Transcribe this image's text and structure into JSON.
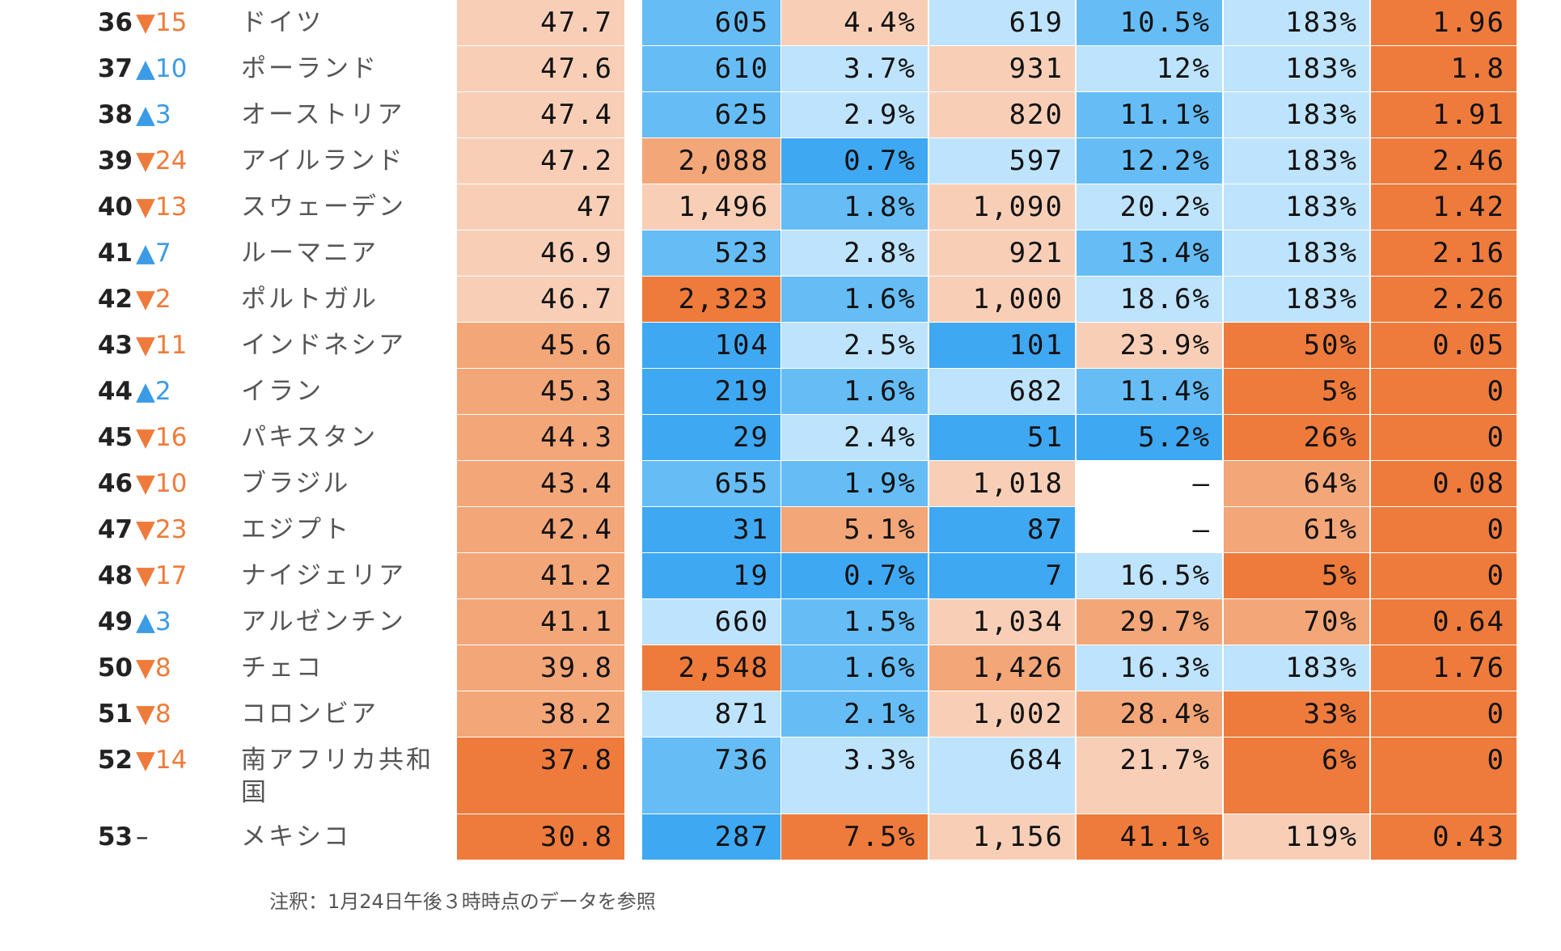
{
  "chart_data": {
    "type": "table",
    "rows": [
      {
        "rank": "36",
        "change": "▼15",
        "dir": "down",
        "country": "ドイツ",
        "values": [
          "47.7",
          "605",
          "4.4%",
          "619",
          "10.5%",
          "183%",
          "1.96"
        ]
      },
      {
        "rank": "37",
        "change": "▲10",
        "dir": "up",
        "country": "ポーランド",
        "values": [
          "47.6",
          "610",
          "3.7%",
          "931",
          "12%",
          "183%",
          "1.8"
        ]
      },
      {
        "rank": "38",
        "change": "▲3",
        "dir": "up",
        "country": "オーストリア",
        "values": [
          "47.4",
          "625",
          "2.9%",
          "820",
          "11.1%",
          "183%",
          "1.91"
        ]
      },
      {
        "rank": "39",
        "change": "▼24",
        "dir": "down",
        "country": "アイルランド",
        "values": [
          "47.2",
          "2,088",
          "0.7%",
          "597",
          "12.2%",
          "183%",
          "2.46"
        ]
      },
      {
        "rank": "40",
        "change": "▼13",
        "dir": "down",
        "country": "スウェーデン",
        "values": [
          "47",
          "1,496",
          "1.8%",
          "1,090",
          "20.2%",
          "183%",
          "1.42"
        ]
      },
      {
        "rank": "41",
        "change": "▲7",
        "dir": "up",
        "country": "ルーマニア",
        "values": [
          "46.9",
          "523",
          "2.8%",
          "921",
          "13.4%",
          "183%",
          "2.16"
        ]
      },
      {
        "rank": "42",
        "change": "▼2",
        "dir": "down",
        "country": "ポルトガル",
        "values": [
          "46.7",
          "2,323",
          "1.6%",
          "1,000",
          "18.6%",
          "183%",
          "2.26"
        ]
      },
      {
        "rank": "43",
        "change": "▼11",
        "dir": "down",
        "country": "インドネシア",
        "values": [
          "45.6",
          "104",
          "2.5%",
          "101",
          "23.9%",
          "50%",
          "0.05"
        ]
      },
      {
        "rank": "44",
        "change": "▲2",
        "dir": "up",
        "country": "イラン",
        "values": [
          "45.3",
          "219",
          "1.6%",
          "682",
          "11.4%",
          "5%",
          "0"
        ]
      },
      {
        "rank": "45",
        "change": "▼16",
        "dir": "down",
        "country": "パキスタン",
        "values": [
          "44.3",
          "29",
          "2.4%",
          "51",
          "5.2%",
          "26%",
          "0"
        ]
      },
      {
        "rank": "46",
        "change": "▼10",
        "dir": "down",
        "country": "ブラジル",
        "values": [
          "43.4",
          "655",
          "1.9%",
          "1,018",
          "–",
          "64%",
          "0.08"
        ]
      },
      {
        "rank": "47",
        "change": "▼23",
        "dir": "down",
        "country": "エジプト",
        "values": [
          "42.4",
          "31",
          "5.1%",
          "87",
          "–",
          "61%",
          "0"
        ]
      },
      {
        "rank": "48",
        "change": "▼17",
        "dir": "down",
        "country": "ナイジェリア",
        "values": [
          "41.2",
          "19",
          "0.7%",
          "7",
          "16.5%",
          "5%",
          "0"
        ]
      },
      {
        "rank": "49",
        "change": "▲3",
        "dir": "up",
        "country": "アルゼンチン",
        "values": [
          "41.1",
          "660",
          "1.5%",
          "1,034",
          "29.7%",
          "70%",
          "0.64"
        ]
      },
      {
        "rank": "50",
        "change": "▼8",
        "dir": "down",
        "country": "チェコ",
        "values": [
          "39.8",
          "2,548",
          "1.6%",
          "1,426",
          "16.3%",
          "183%",
          "1.76"
        ]
      },
      {
        "rank": "51",
        "change": "▼8",
        "dir": "down",
        "country": "コロンビア",
        "values": [
          "38.2",
          "871",
          "2.1%",
          "1,002",
          "28.4%",
          "33%",
          "0"
        ]
      },
      {
        "rank": "52",
        "change": "▼14",
        "dir": "down",
        "country": "南アフリカ共和国",
        "values": [
          "37.8",
          "736",
          "3.3%",
          "684",
          "21.7%",
          "6%",
          "0"
        ]
      },
      {
        "rank": "53",
        "change": "–",
        "dir": "none",
        "country": "メキシコ",
        "values": [
          "30.8",
          "287",
          "7.5%",
          "1,156",
          "41.1%",
          "119%",
          "0.43"
        ]
      }
    ],
    "cell_colors": [
      [
        "#f8cfb6",
        "#66bdf6",
        "#f8cfb6",
        "#bee3fc",
        "#66bdf6",
        "#bee3fc",
        "#ee7b3b"
      ],
      [
        "#f8cfb6",
        "#66bdf6",
        "#bee3fc",
        "#f8cfb6",
        "#bee3fc",
        "#bee3fc",
        "#ee7b3b"
      ],
      [
        "#f8cfb6",
        "#66bdf6",
        "#bee3fc",
        "#f8cfb6",
        "#66bdf6",
        "#bee3fc",
        "#ee7b3b"
      ],
      [
        "#f8cfb6",
        "#f3a678",
        "#3fa8f2",
        "#bee3fc",
        "#66bdf6",
        "#bee3fc",
        "#ee7b3b"
      ],
      [
        "#f8cfb6",
        "#f8cfb6",
        "#66bdf6",
        "#f8cfb6",
        "#bee3fc",
        "#bee3fc",
        "#ee7b3b"
      ],
      [
        "#f8cfb6",
        "#66bdf6",
        "#bee3fc",
        "#f8cfb6",
        "#66bdf6",
        "#bee3fc",
        "#ee7b3b"
      ],
      [
        "#f8cfb6",
        "#ee7b3b",
        "#66bdf6",
        "#f8cfb6",
        "#bee3fc",
        "#bee3fc",
        "#ee7b3b"
      ],
      [
        "#f3a678",
        "#3fa8f2",
        "#bee3fc",
        "#3fa8f2",
        "#f8cfb6",
        "#ee7b3b",
        "#ee7b3b"
      ],
      [
        "#f3a678",
        "#3fa8f2",
        "#66bdf6",
        "#bee3fc",
        "#66bdf6",
        "#ee7b3b",
        "#ee7b3b"
      ],
      [
        "#f3a678",
        "#3fa8f2",
        "#bee3fc",
        "#3fa8f2",
        "#3fa8f2",
        "#ee7b3b",
        "#ee7b3b"
      ],
      [
        "#f3a678",
        "#66bdf6",
        "#66bdf6",
        "#f8cfb6",
        "#ffffff",
        "#f3a678",
        "#ee7b3b"
      ],
      [
        "#f3a678",
        "#3fa8f2",
        "#f3a678",
        "#3fa8f2",
        "#ffffff",
        "#f3a678",
        "#ee7b3b"
      ],
      [
        "#f3a678",
        "#3fa8f2",
        "#3fa8f2",
        "#3fa8f2",
        "#bee3fc",
        "#ee7b3b",
        "#ee7b3b"
      ],
      [
        "#f3a678",
        "#bee3fc",
        "#66bdf6",
        "#f8cfb6",
        "#f3a678",
        "#f3a678",
        "#ee7b3b"
      ],
      [
        "#f3a678",
        "#ee7b3b",
        "#66bdf6",
        "#f3a678",
        "#bee3fc",
        "#bee3fc",
        "#ee7b3b"
      ],
      [
        "#f3a678",
        "#bee3fc",
        "#66bdf6",
        "#f8cfb6",
        "#f3a678",
        "#ee7b3b",
        "#ee7b3b"
      ],
      [
        "#ee7b3b",
        "#66bdf6",
        "#bee3fc",
        "#bee3fc",
        "#f8cfb6",
        "#ee7b3b",
        "#ee7b3b"
      ],
      [
        "#ee7b3b",
        "#3fa8f2",
        "#ee7b3b",
        "#f8cfb6",
        "#ee7b3b",
        "#f8cfb6",
        "#ee7b3b"
      ]
    ],
    "colors": {
      "up": "#3b9be6",
      "down": "#ee7b3b",
      "none": "#222222"
    }
  },
  "note": "注釈：1月24日午後３時時点のデータを参照"
}
